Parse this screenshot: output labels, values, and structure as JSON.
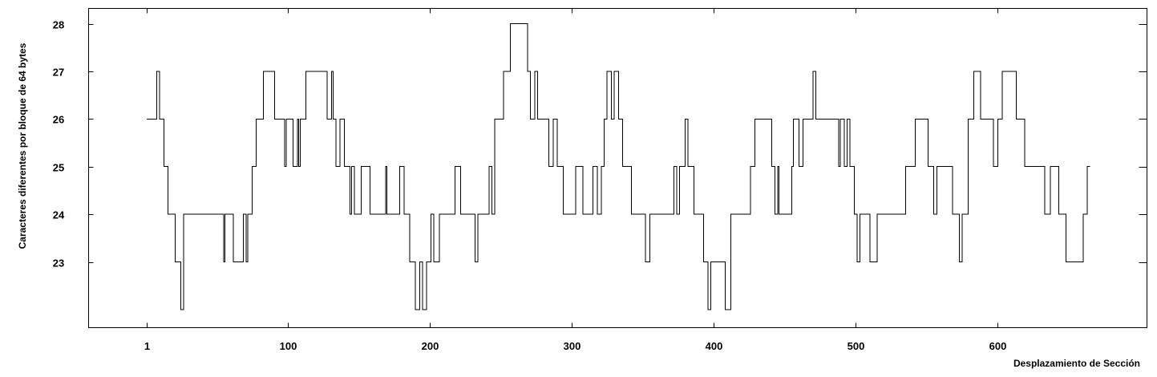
{
  "chart_data": {
    "type": "line",
    "title": "",
    "xlabel": "Desplazamiento de Sección",
    "ylabel": "Caracteres diferentes por bloque de 64 bytes",
    "xlim": [
      -40,
      705
    ],
    "ylim": [
      21.62,
      28.32
    ],
    "xticks": [
      1,
      100,
      200,
      300,
      400,
      500,
      600
    ],
    "yticks": [
      23,
      24,
      25,
      26,
      27,
      28
    ],
    "grid": false,
    "step": true,
    "series": [
      {
        "points": [
          [
            1,
            26
          ],
          [
            6,
            26
          ],
          [
            8,
            27
          ],
          [
            10,
            26
          ],
          [
            13,
            25
          ],
          [
            16,
            24
          ],
          [
            21,
            23
          ],
          [
            25,
            22
          ],
          [
            27,
            24
          ],
          [
            54,
            24
          ],
          [
            55,
            23
          ],
          [
            56,
            24
          ],
          [
            60,
            24
          ],
          [
            62,
            23
          ],
          [
            67,
            23
          ],
          [
            69,
            24
          ],
          [
            71,
            23
          ],
          [
            72,
            24
          ],
          [
            75,
            25
          ],
          [
            78,
            26
          ],
          [
            83,
            27
          ],
          [
            91,
            26
          ],
          [
            98,
            25
          ],
          [
            99,
            26
          ],
          [
            104,
            25
          ],
          [
            107,
            26
          ],
          [
            108,
            25
          ],
          [
            109,
            26
          ],
          [
            113,
            27
          ],
          [
            128,
            26
          ],
          [
            131,
            27
          ],
          [
            132,
            26
          ],
          [
            134,
            25
          ],
          [
            137,
            26
          ],
          [
            140,
            25
          ],
          [
            144,
            24
          ],
          [
            145,
            25
          ],
          [
            147,
            24
          ],
          [
            152,
            25
          ],
          [
            158,
            24
          ],
          [
            169,
            25
          ],
          [
            170,
            24
          ],
          [
            179,
            25
          ],
          [
            182,
            24
          ],
          [
            186,
            23
          ],
          [
            190,
            22
          ],
          [
            193,
            23
          ],
          [
            195,
            22
          ],
          [
            198,
            23
          ],
          [
            201,
            24
          ],
          [
            203,
            23
          ],
          [
            207,
            24
          ],
          [
            218,
            25
          ],
          [
            222,
            24
          ],
          [
            232,
            23
          ],
          [
            234,
            24
          ],
          [
            242,
            25
          ],
          [
            244,
            24
          ],
          [
            246,
            26
          ],
          [
            252,
            27
          ],
          [
            257,
            28
          ],
          [
            269,
            27
          ],
          [
            271,
            26
          ],
          [
            274,
            27
          ],
          [
            276,
            26
          ],
          [
            284,
            25
          ],
          [
            287,
            26
          ],
          [
            290,
            25
          ],
          [
            294,
            24
          ],
          [
            303,
            25
          ],
          [
            308,
            24
          ],
          [
            315,
            25
          ],
          [
            318,
            24
          ],
          [
            321,
            25
          ],
          [
            323,
            26
          ],
          [
            325,
            27
          ],
          [
            328,
            26
          ],
          [
            330,
            27
          ],
          [
            333,
            26
          ],
          [
            336,
            25
          ],
          [
            342,
            24
          ],
          [
            352,
            23
          ],
          [
            355,
            24
          ],
          [
            362,
            24
          ],
          [
            372,
            25
          ],
          [
            374,
            24
          ],
          [
            376,
            25
          ],
          [
            380,
            26
          ],
          [
            382,
            25
          ],
          [
            386,
            24
          ],
          [
            393,
            23
          ],
          [
            396,
            22
          ],
          [
            398,
            23
          ],
          [
            408,
            22
          ],
          [
            412,
            24
          ],
          [
            426,
            25
          ],
          [
            429,
            26
          ],
          [
            441,
            25
          ],
          [
            443,
            24
          ],
          [
            445,
            25
          ],
          [
            446,
            24
          ],
          [
            455,
            25
          ],
          [
            456,
            26
          ],
          [
            460,
            25
          ],
          [
            463,
            26
          ],
          [
            470,
            27
          ],
          [
            472,
            26
          ],
          [
            488,
            25
          ],
          [
            489,
            26
          ],
          [
            492,
            25
          ],
          [
            494,
            26
          ],
          [
            496,
            25
          ],
          [
            499,
            24
          ],
          [
            501,
            23
          ],
          [
            503,
            24
          ],
          [
            510,
            23
          ],
          [
            515,
            24
          ],
          [
            535,
            25
          ],
          [
            542,
            26
          ],
          [
            551,
            25
          ],
          [
            555,
            24
          ],
          [
            557,
            25
          ],
          [
            568,
            24
          ],
          [
            573,
            23
          ],
          [
            575,
            24
          ],
          [
            579,
            26
          ],
          [
            583,
            27
          ],
          [
            588,
            26
          ],
          [
            597,
            25
          ],
          [
            600,
            26
          ],
          [
            603,
            27
          ],
          [
            613,
            26
          ],
          [
            619,
            25
          ],
          [
            633,
            24
          ],
          [
            637,
            25
          ],
          [
            643,
            24
          ],
          [
            648,
            23
          ],
          [
            660,
            24
          ],
          [
            663,
            25
          ],
          [
            665,
            25
          ]
        ]
      }
    ]
  }
}
